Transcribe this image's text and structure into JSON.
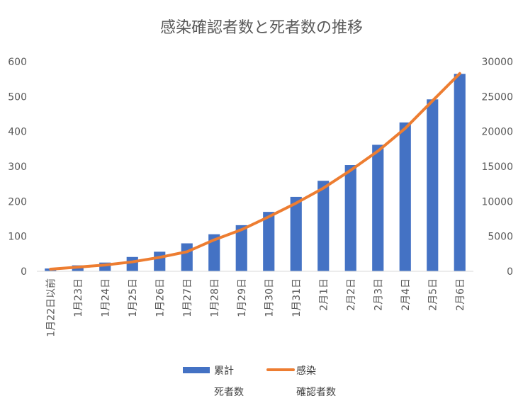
{
  "chart_data": {
    "type": "bar",
    "title": "感染確認者数と死者数の推移",
    "categories": [
      "1月22日以前",
      "1月23日",
      "1月24日",
      "1月25日",
      "1月26日",
      "1月27日",
      "1月28日",
      "1月29日",
      "1月30日",
      "1月31日",
      "2月1日",
      "2月2日",
      "2月3日",
      "2月4日",
      "2月5日",
      "2月6日"
    ],
    "y_left": {
      "ticks": [
        0,
        100,
        200,
        300,
        400,
        500,
        600
      ],
      "ylim": [
        0,
        600
      ]
    },
    "y_right": {
      "ticks": [
        0,
        5000,
        10000,
        15000,
        20000,
        25000,
        30000
      ],
      "ylim": [
        0,
        30000
      ]
    },
    "series": [
      {
        "name": "累計",
        "axis_label": "死者数",
        "type": "bar",
        "axis": "left",
        "color": "#4472C4",
        "values": [
          8,
          17,
          25,
          41,
          56,
          80,
          106,
          132,
          170,
          213,
          259,
          304,
          362,
          426,
          492,
          565
        ]
      },
      {
        "name": "感染",
        "axis_label": "確認者数",
        "type": "line",
        "axis": "right",
        "color": "#ED7D31",
        "values": [
          300,
          600,
          900,
          1350,
          2000,
          2800,
          4500,
          5950,
          7800,
          9750,
          11900,
          14450,
          17200,
          20450,
          24400,
          28300
        ]
      }
    ],
    "legend_position": "bottom",
    "grid": false
  }
}
